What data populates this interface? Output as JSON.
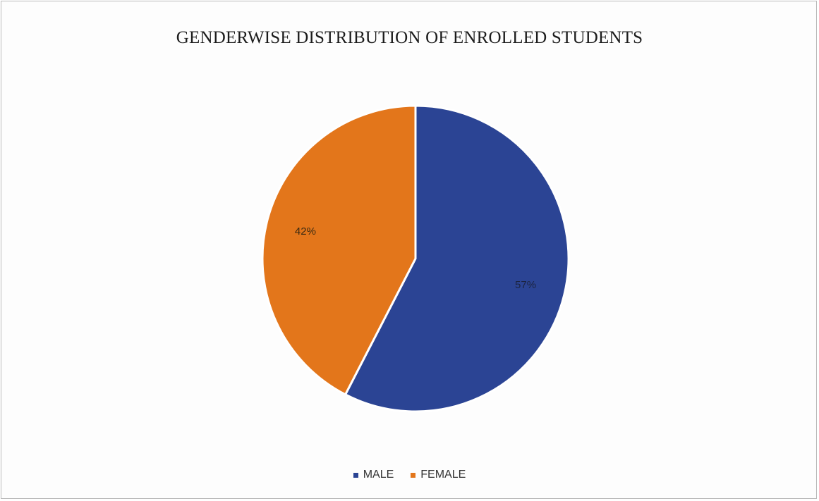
{
  "chart_data": {
    "type": "pie",
    "title": "GENDERWISE DISTRIBUTION OF ENROLLED STUDENTS",
    "categories": [
      "MALE",
      "FEMALE"
    ],
    "values": [
      57,
      42
    ],
    "data_labels": [
      "57%",
      "42%"
    ],
    "colors": [
      "#2b4494",
      "#e3761b"
    ],
    "legend_position": "bottom"
  }
}
